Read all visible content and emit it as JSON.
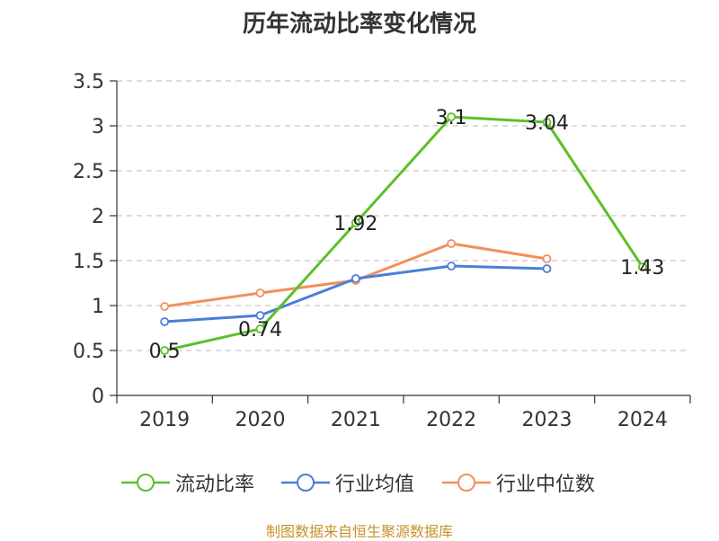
{
  "chart_data": {
    "type": "line",
    "title": "历年流动比率变化情况",
    "categories": [
      "2019",
      "2020",
      "2021",
      "2022",
      "2023",
      "2024"
    ],
    "ylim": [
      0,
      3.5
    ],
    "yticks": [
      "0",
      "0.5",
      "1",
      "1.5",
      "2",
      "2.5",
      "3",
      "3.5"
    ],
    "grid": true,
    "legend_position": "bottom",
    "series": [
      {
        "name": "流动比率",
        "color": "#5cc02a",
        "values": [
          0.5,
          0.74,
          1.92,
          3.1,
          3.04,
          1.43
        ],
        "labels": [
          "0.5",
          "0.74",
          "1.92",
          "3.1",
          "3.04",
          "1.43"
        ]
      },
      {
        "name": "行业均值",
        "color": "#4a7fd6",
        "values": [
          0.82,
          0.89,
          1.3,
          1.44,
          1.41,
          null
        ]
      },
      {
        "name": "行业中位数",
        "color": "#f48e5a",
        "values": [
          0.99,
          1.14,
          1.28,
          1.69,
          1.52,
          null
        ]
      }
    ]
  },
  "footer": {
    "source": "制图数据来自恒生聚源数据库"
  }
}
